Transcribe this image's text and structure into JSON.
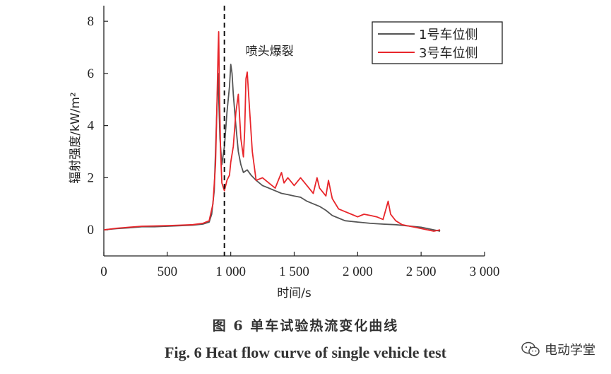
{
  "chart_data": {
    "type": "line",
    "xlabel": "时间/s",
    "ylabel": "辐射强度/kW/m²",
    "xlim": [
      0,
      3000
    ],
    "ylim": [
      -1,
      8.6
    ],
    "xticks": [
      0,
      500,
      1000,
      1500,
      2000,
      2500,
      3000
    ],
    "xtick_labels": [
      "0",
      "500",
      "1 000",
      "1 500",
      "2 000",
      "2 500",
      "3 000"
    ],
    "yticks": [
      0,
      2,
      4,
      6,
      8
    ],
    "ytick_labels": [
      "0",
      "2",
      "4",
      "6",
      "8"
    ],
    "grid": false,
    "legend_position": "top-right",
    "annotation": {
      "text": "喷头爆裂",
      "x": 950
    },
    "series": [
      {
        "name": "1号车位侧",
        "color": "#555555",
        "x": [
          0,
          100,
          200,
          300,
          400,
          500,
          600,
          700,
          780,
          830,
          850,
          870,
          880,
          890,
          900,
          915,
          930,
          950,
          970,
          990,
          1000,
          1010,
          1020,
          1040,
          1060,
          1080,
          1100,
          1130,
          1160,
          1200,
          1250,
          1300,
          1350,
          1400,
          1450,
          1500,
          1550,
          1600,
          1650,
          1700,
          1750,
          1800,
          1850,
          1900,
          2000,
          2100,
          2200,
          2300,
          2400,
          2500,
          2550,
          2600,
          2650
        ],
        "y": [
          0.0,
          0.05,
          0.08,
          0.12,
          0.12,
          0.14,
          0.16,
          0.18,
          0.22,
          0.3,
          0.6,
          1.5,
          3.0,
          4.5,
          6.0,
          3.5,
          2.5,
          3.2,
          4.5,
          5.5,
          6.35,
          6.0,
          5.2,
          4.0,
          3.0,
          2.5,
          2.2,
          2.3,
          2.1,
          1.9,
          1.7,
          1.6,
          1.5,
          1.4,
          1.35,
          1.3,
          1.25,
          1.1,
          1.0,
          0.9,
          0.75,
          0.55,
          0.45,
          0.35,
          0.3,
          0.25,
          0.22,
          0.2,
          0.15,
          0.1,
          0.05,
          0.0,
          -0.05
        ]
      },
      {
        "name": "3号车位侧",
        "color": "#e8262b",
        "x": [
          0,
          100,
          200,
          300,
          400,
          500,
          600,
          700,
          780,
          830,
          860,
          880,
          890,
          900,
          905,
          910,
          920,
          930,
          950,
          970,
          990,
          1000,
          1020,
          1040,
          1060,
          1080,
          1100,
          1110,
          1120,
          1130,
          1150,
          1170,
          1200,
          1250,
          1300,
          1350,
          1400,
          1420,
          1450,
          1500,
          1550,
          1600,
          1650,
          1680,
          1700,
          1750,
          1770,
          1800,
          1850,
          1900,
          1950,
          2000,
          2050,
          2100,
          2150,
          2200,
          2240,
          2260,
          2300,
          2350,
          2400,
          2450,
          2500,
          2550,
          2600,
          2650
        ],
        "y": [
          0.0,
          0.06,
          0.1,
          0.14,
          0.15,
          0.16,
          0.18,
          0.2,
          0.25,
          0.35,
          1.0,
          2.5,
          4.5,
          6.8,
          7.6,
          5.5,
          3.0,
          1.8,
          1.5,
          1.9,
          2.1,
          2.6,
          3.2,
          4.5,
          5.2,
          3.5,
          2.8,
          3.8,
          5.8,
          6.05,
          4.5,
          3.0,
          1.9,
          2.0,
          1.8,
          1.6,
          2.2,
          1.8,
          2.0,
          1.7,
          2.0,
          1.7,
          1.4,
          2.0,
          1.6,
          1.3,
          1.9,
          1.2,
          0.8,
          0.7,
          0.6,
          0.5,
          0.6,
          0.55,
          0.5,
          0.4,
          1.1,
          0.6,
          0.35,
          0.2,
          0.15,
          0.1,
          0.05,
          0.0,
          -0.05,
          0.0
        ]
      }
    ]
  },
  "caption": {
    "cn": "图 6    单车试验热流变化曲线",
    "en": "Fig. 6    Heat flow curve of single vehicle test"
  },
  "watermark": {
    "text": "电动学堂",
    "icon": "wechat-icon"
  }
}
